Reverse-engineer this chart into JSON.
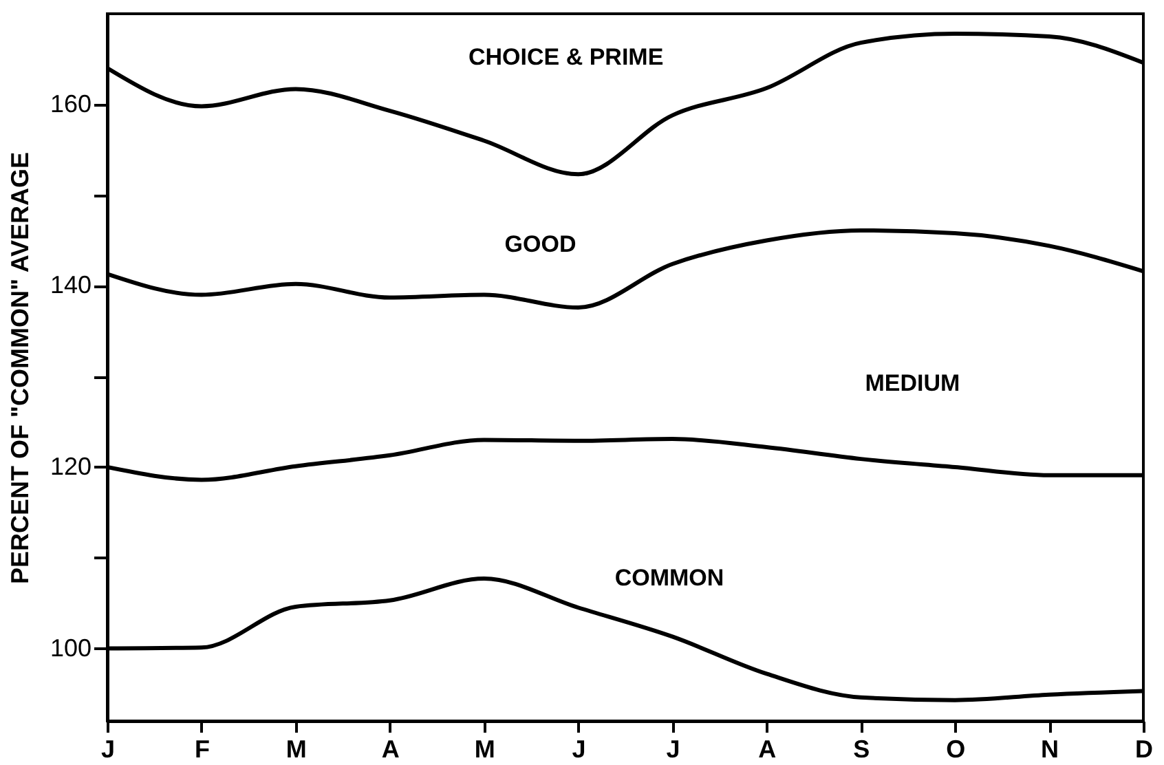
{
  "chart_data": {
    "type": "line",
    "ylabel": "PERCENT OF \"COMMON\" AVERAGE",
    "categories": [
      "J",
      "F",
      "M",
      "A",
      "M",
      "J",
      "J",
      "A",
      "S",
      "O",
      "N",
      "D"
    ],
    "ylim": [
      92,
      170
    ],
    "yticks": [
      100,
      {
        "value": 110,
        "label": null
      },
      120,
      {
        "value": 130,
        "label": null
      },
      140,
      {
        "value": 150,
        "label": null
      },
      160
    ],
    "grid": false,
    "legend": false,
    "series": [
      {
        "name": "CHOICE & PRIME",
        "color": "#000000",
        "values": [
          164.0,
          159.8,
          161.7,
          159.3,
          156.0,
          152.3,
          158.8,
          161.8,
          166.8,
          167.8,
          167.5,
          164.6
        ]
      },
      {
        "name": "GOOD",
        "color": "#000000",
        "values": [
          141.3,
          139.0,
          140.2,
          138.7,
          139.0,
          137.6,
          142.4,
          145.0,
          146.1,
          145.8,
          144.4,
          141.6
        ]
      },
      {
        "name": "MEDIUM",
        "color": "#000000",
        "values": [
          120.0,
          118.6,
          120.1,
          121.3,
          123.0,
          122.9,
          123.1,
          122.2,
          120.9,
          120.0,
          119.1,
          119.1
        ]
      },
      {
        "name": "COMMON",
        "color": "#000000",
        "values": [
          100.0,
          100.1,
          104.6,
          105.3,
          107.7,
          104.5,
          101.3,
          97.2,
          94.6,
          94.3,
          94.9,
          95.3
        ]
      }
    ]
  }
}
